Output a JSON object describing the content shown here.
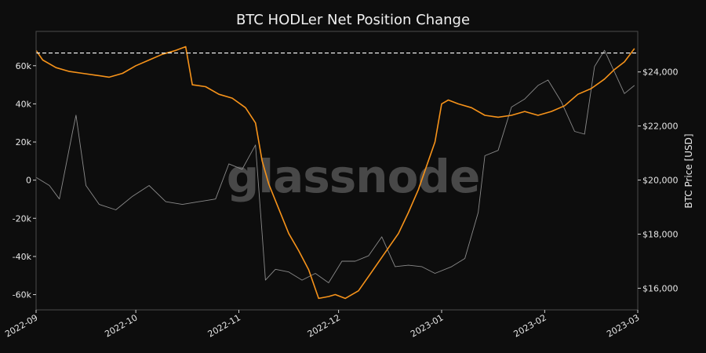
{
  "chart_data": {
    "type": "line",
    "title": "BTC HODLer Net Position Change",
    "watermark": "glassnode",
    "xlabel": "",
    "ylabel_left": "",
    "ylabel_right": "BTC Price [USD]",
    "x_ticks": [
      "2022-09",
      "2022-10",
      "2022-11",
      "2022-12",
      "2023-01",
      "2023-02",
      "2023-03"
    ],
    "y_left_ticks": [
      "-60k",
      "-40k",
      "-20k",
      "0",
      "20k",
      "40k",
      "60k"
    ],
    "y_right_ticks": [
      "$16,000",
      "$18,000",
      "$20,000",
      "$22,000",
      "$24,000"
    ],
    "ylim_left": [
      -68000,
      78000
    ],
    "ylim_right": [
      15200,
      25500
    ],
    "reference_line": {
      "axis": "right",
      "value": 24700,
      "style": "dashed",
      "color": "#ffffff"
    },
    "grid": false,
    "colors": {
      "background": "#0d0d0d",
      "net_position": "#f7931a",
      "price": "#8a8a8a",
      "frame": "#4a4a4a"
    },
    "series": [
      {
        "name": "HODLer Net Position Change",
        "axis": "left",
        "color": "#f7931a",
        "x": [
          "2022-09-01",
          "2022-09-03",
          "2022-09-07",
          "2022-09-11",
          "2022-09-15",
          "2022-09-19",
          "2022-09-23",
          "2022-09-27",
          "2022-10-01",
          "2022-10-05",
          "2022-10-09",
          "2022-10-13",
          "2022-10-16",
          "2022-10-18",
          "2022-10-22",
          "2022-10-26",
          "2022-10-30",
          "2022-11-03",
          "2022-11-06",
          "2022-11-08",
          "2022-11-10",
          "2022-11-13",
          "2022-11-16",
          "2022-11-19",
          "2022-11-22",
          "2022-11-25",
          "2022-11-28",
          "2022-11-30",
          "2022-12-03",
          "2022-12-07",
          "2022-12-11",
          "2022-12-15",
          "2022-12-19",
          "2022-12-22",
          "2022-12-25",
          "2022-12-28",
          "2022-12-30",
          "2023-01-01",
          "2023-01-03",
          "2023-01-06",
          "2023-01-10",
          "2023-01-14",
          "2023-01-18",
          "2023-01-22",
          "2023-01-26",
          "2023-01-30",
          "2023-02-03",
          "2023-02-07",
          "2023-02-11",
          "2023-02-15",
          "2023-02-19",
          "2023-02-22",
          "2023-02-25",
          "2023-02-28"
        ],
        "y": [
          68000,
          63000,
          59000,
          57000,
          56000,
          55000,
          54000,
          56000,
          60000,
          63000,
          66000,
          68000,
          70000,
          50000,
          49000,
          45000,
          43000,
          38000,
          30000,
          10000,
          -2000,
          -15000,
          -28000,
          -37000,
          -47000,
          -62000,
          -61000,
          -60000,
          -62000,
          -58000,
          -48000,
          -38000,
          -28000,
          -17000,
          -5000,
          10000,
          20000,
          40000,
          42000,
          40000,
          38000,
          34000,
          33000,
          34000,
          36000,
          34000,
          36000,
          39000,
          45000,
          48000,
          53000,
          58000,
          62000,
          69000
        ]
      },
      {
        "name": "BTC Price [USD]",
        "axis": "right",
        "color": "#8a8a8a",
        "x": [
          "2022-09-01",
          "2022-09-05",
          "2022-09-08",
          "2022-09-12",
          "2022-09-13",
          "2022-09-16",
          "2022-09-20",
          "2022-09-25",
          "2022-09-30",
          "2022-10-05",
          "2022-10-10",
          "2022-10-15",
          "2022-10-20",
          "2022-10-25",
          "2022-10-29",
          "2022-11-02",
          "2022-11-06",
          "2022-11-08",
          "2022-11-09",
          "2022-11-12",
          "2022-11-16",
          "2022-11-20",
          "2022-11-24",
          "2022-11-28",
          "2022-12-02",
          "2022-12-06",
          "2022-12-10",
          "2022-12-14",
          "2022-12-18",
          "2022-12-22",
          "2022-12-26",
          "2022-12-30",
          "2023-01-04",
          "2023-01-08",
          "2023-01-12",
          "2023-01-14",
          "2023-01-18",
          "2023-01-22",
          "2023-01-26",
          "2023-01-30",
          "2023-02-02",
          "2023-02-06",
          "2023-02-10",
          "2023-02-13",
          "2023-02-16",
          "2023-02-19",
          "2023-02-22",
          "2023-02-25",
          "2023-02-28"
        ],
        "y": [
          20100,
          19800,
          19300,
          21800,
          22400,
          19800,
          19100,
          18900,
          19400,
          19800,
          19200,
          19100,
          19200,
          19300,
          20600,
          20400,
          21300,
          18000,
          16300,
          16700,
          16600,
          16300,
          16550,
          16200,
          17000,
          17000,
          17200,
          17900,
          16800,
          16850,
          16800,
          16550,
          16800,
          17100,
          18800,
          20900,
          21100,
          22700,
          23000,
          23500,
          23700,
          22900,
          21800,
          21700,
          24200,
          24800,
          24000,
          23200,
          23500
        ]
      }
    ]
  }
}
